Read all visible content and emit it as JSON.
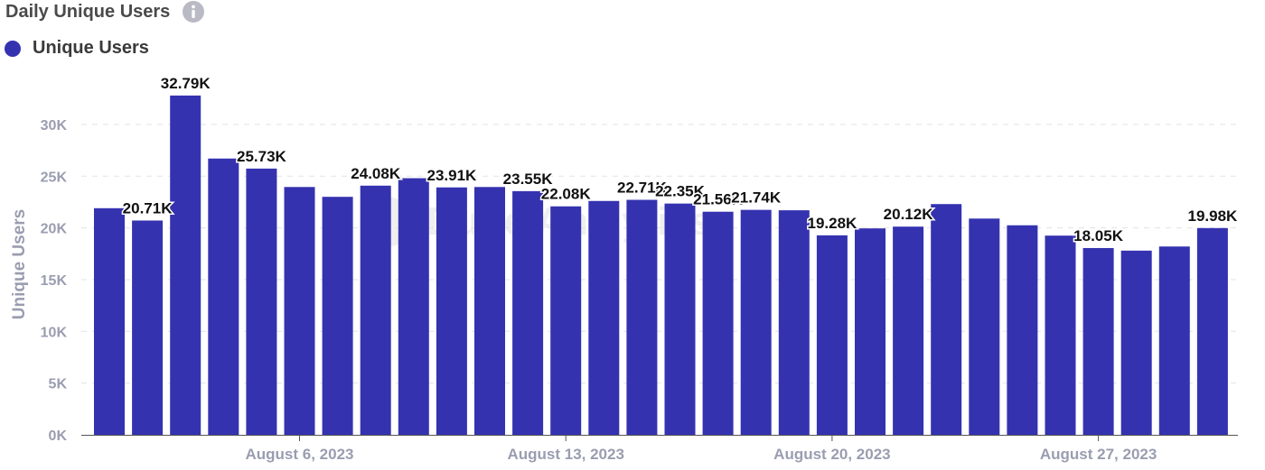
{
  "header": {
    "title": "Daily Unique Users",
    "info_icon": "info-circle-icon"
  },
  "legend": {
    "label": "Unique Users",
    "color": "#3532b0"
  },
  "watermark": {
    "text": "Dune Analytics"
  },
  "chart_data": {
    "type": "bar",
    "ylabel": "Unique Users",
    "ylim": [
      0,
      35000
    ],
    "yticks": [
      0,
      5000,
      10000,
      15000,
      20000,
      25000,
      30000
    ],
    "ytick_labels": [
      "0K",
      "5K",
      "10K",
      "15K",
      "20K",
      "25K",
      "30K"
    ],
    "xticks": [
      {
        "index": 5,
        "label": "August 6, 2023"
      },
      {
        "index": 12,
        "label": "August 13, 2023"
      },
      {
        "index": 19,
        "label": "August 20, 2023"
      },
      {
        "index": 26,
        "label": "August 27, 2023"
      }
    ],
    "grid": true,
    "bar_color": "#3532b0",
    "series": [
      {
        "name": "Unique Users",
        "values": [
          21900,
          20710,
          32790,
          26700,
          25730,
          23950,
          23000,
          24080,
          24800,
          23910,
          23950,
          23550,
          22080,
          22600,
          22710,
          22350,
          21560,
          21740,
          21700,
          19280,
          19950,
          20120,
          22300,
          20900,
          20250,
          19250,
          18050,
          17800,
          18200,
          19980
        ],
        "data_labels": [
          "",
          "20.71K",
          "32.79K",
          "",
          "25.73K",
          "",
          "",
          "24.08K",
          "",
          "23.91K",
          "",
          "23.55K",
          "22.08K",
          "",
          "22.71K",
          "22.35K",
          "21.56K",
          "21.74K",
          "",
          "19.28K",
          "",
          "20.12K",
          "",
          "",
          "",
          "",
          "18.05K",
          "",
          "",
          "19.98K"
        ]
      }
    ]
  }
}
